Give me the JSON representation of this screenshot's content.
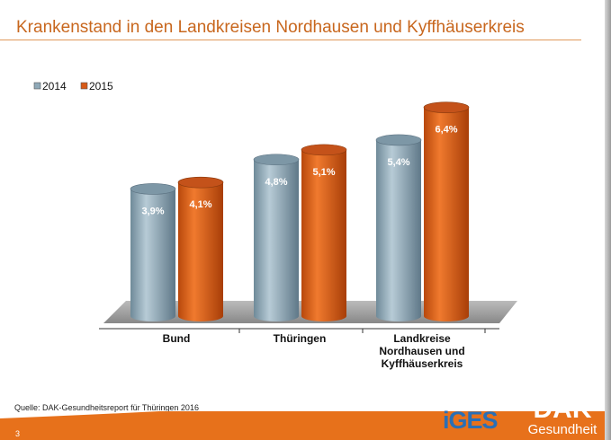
{
  "title": "Krankenstand in den Landkreisen Nordhausen und Kyffhäuserkreis",
  "source": "Quelle: DAK-Gesundheitsreport für Thüringen 2016",
  "page_number": "3",
  "logos": {
    "iges": "iGES",
    "dak_top": "DAK",
    "dak_bottom": "Gesundheit"
  },
  "colors": {
    "s2014": "#8fa9b8",
    "s2015": "#d75a17",
    "title": "#c8671e"
  },
  "chart_data": {
    "type": "bar",
    "title": "Krankenstand in den Landkreisen Nordhausen und Kyffhäuserkreis",
    "categories": [
      [
        "Bund"
      ],
      [
        "Thüringen"
      ],
      [
        "Landkreise",
        "Nordhausen und",
        "Kyffhäuserkreis"
      ]
    ],
    "series": [
      {
        "name": "2014",
        "values": [
          3.9,
          4.8,
          5.4
        ],
        "labels": [
          "3,9%",
          "4,8%",
          "5,4%"
        ]
      },
      {
        "name": "2015",
        "values": [
          4.1,
          5.1,
          6.4
        ],
        "labels": [
          "4,1%",
          "5,1%",
          "6,4%"
        ]
      }
    ],
    "ylim": [
      0,
      7
    ],
    "legend": "top-left",
    "grid": false,
    "unit": "%"
  }
}
